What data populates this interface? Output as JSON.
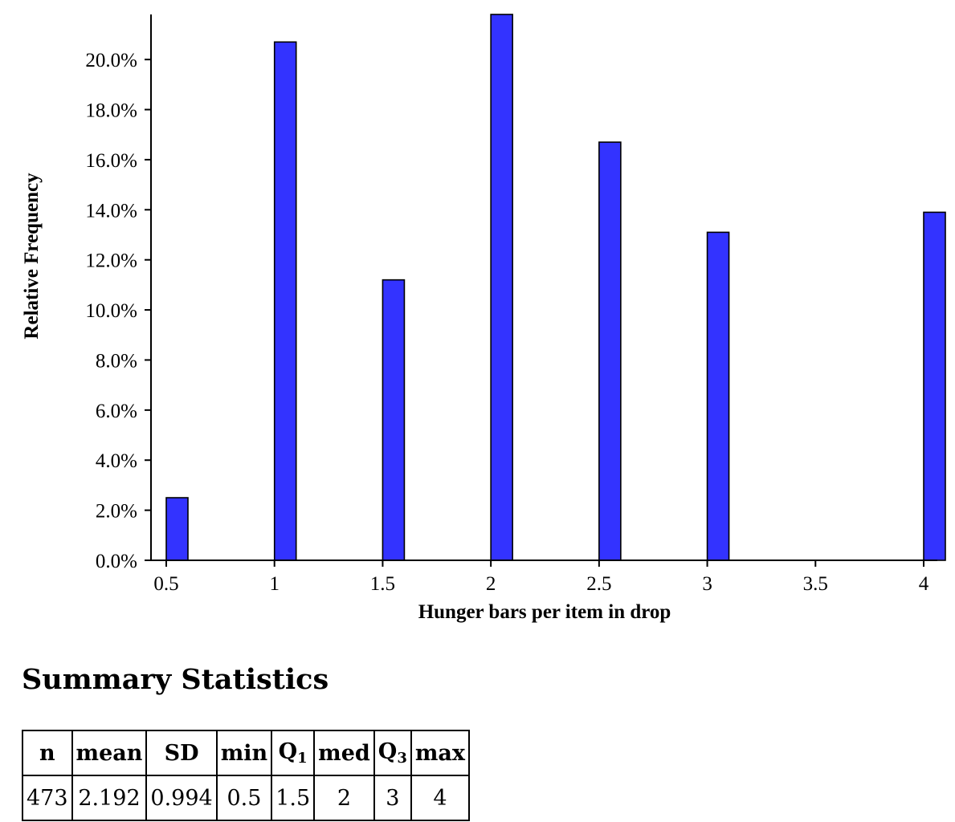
{
  "chart_data": {
    "type": "bar",
    "xlabel": "Hunger bars per item in drop",
    "ylabel": "Relative Frequency",
    "x": [
      0.5,
      1,
      1.5,
      2,
      2.5,
      3,
      4
    ],
    "values": [
      2.5,
      20.7,
      11.2,
      21.8,
      16.7,
      13.1,
      13.9
    ],
    "value_units": "percent",
    "xlim": [
      0.5,
      4
    ],
    "ylim": [
      0,
      21.8
    ],
    "x_ticks": [
      "0.5",
      "1",
      "1.5",
      "2",
      "2.5",
      "3",
      "3.5",
      "4"
    ],
    "y_ticks": [
      "0.0%",
      "2.0%",
      "4.0%",
      "6.0%",
      "8.0%",
      "10.0%",
      "12.0%",
      "14.0%",
      "16.0%",
      "18.0%",
      "20.0%"
    ],
    "bar_color": "#3333ff",
    "grid": false,
    "legend": "none"
  },
  "summary": {
    "title": "Summary Statistics",
    "headers": [
      {
        "main": "n",
        "sub": ""
      },
      {
        "main": "mean",
        "sub": ""
      },
      {
        "main": "SD",
        "sub": ""
      },
      {
        "main": "min",
        "sub": ""
      },
      {
        "main": "Q",
        "sub": "1"
      },
      {
        "main": "med",
        "sub": ""
      },
      {
        "main": "Q",
        "sub": "3"
      },
      {
        "main": "max",
        "sub": ""
      }
    ],
    "values": [
      "473",
      "2.192",
      "0.994",
      "0.5",
      "1.5",
      "2",
      "3",
      "4"
    ]
  }
}
